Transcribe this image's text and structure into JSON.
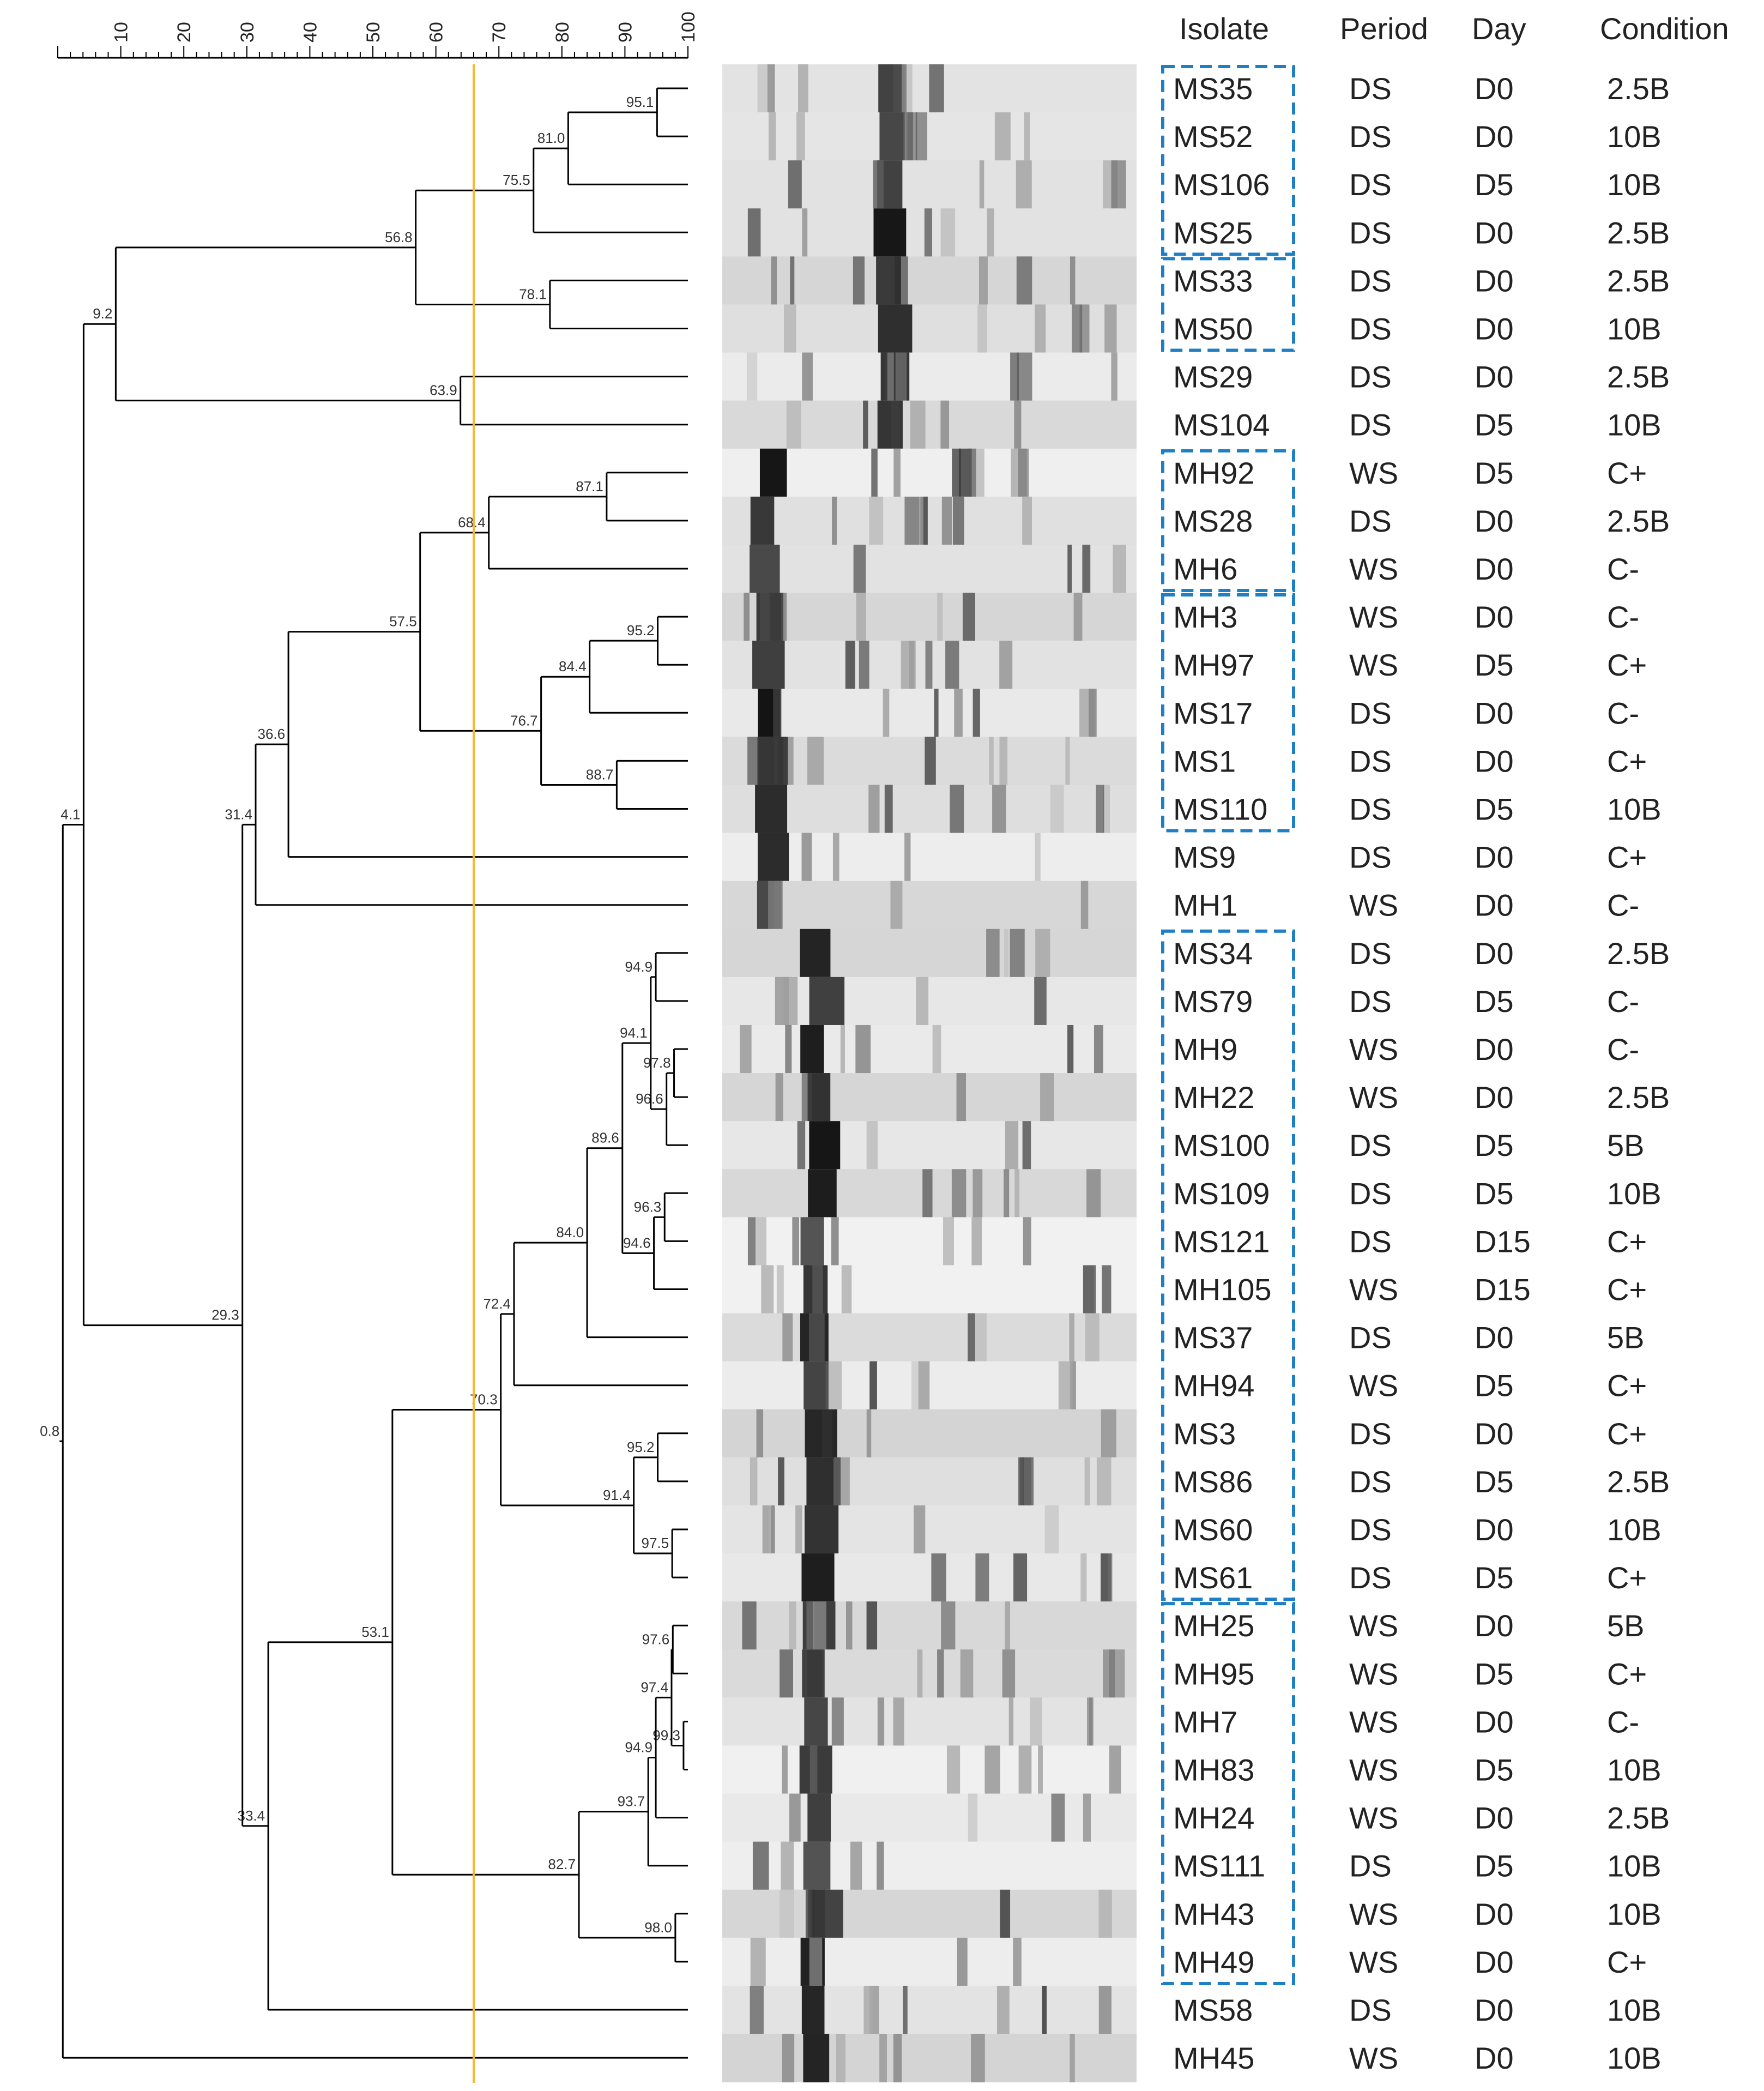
{
  "scale": {
    "ticks": [
      "10",
      "20",
      "30",
      "40",
      "50",
      "60",
      "70",
      "80",
      "90",
      "100"
    ],
    "min": 0,
    "max": 100,
    "cutoff": 66
  },
  "columns": {
    "isolate": "Isolate",
    "period": "Period",
    "day": "Day",
    "condition": "Condition"
  },
  "isolates": [
    {
      "isolate": "MS35",
      "period": "DS",
      "day": "D0",
      "condition": "2.5B"
    },
    {
      "isolate": "MS52",
      "period": "DS",
      "day": "D0",
      "condition": "10B"
    },
    {
      "isolate": "MS106",
      "period": "DS",
      "day": "D5",
      "condition": "10B"
    },
    {
      "isolate": "MS25",
      "period": "DS",
      "day": "D0",
      "condition": "2.5B"
    },
    {
      "isolate": "MS33",
      "period": "DS",
      "day": "D0",
      "condition": "2.5B"
    },
    {
      "isolate": "MS50",
      "period": "DS",
      "day": "D0",
      "condition": "10B"
    },
    {
      "isolate": "MS29",
      "period": "DS",
      "day": "D0",
      "condition": "2.5B"
    },
    {
      "isolate": "MS104",
      "period": "DS",
      "day": "D5",
      "condition": "10B"
    },
    {
      "isolate": "MH92",
      "period": "WS",
      "day": "D5",
      "condition": "C+"
    },
    {
      "isolate": "MS28",
      "period": "DS",
      "day": "D0",
      "condition": "2.5B"
    },
    {
      "isolate": "MH6",
      "period": "WS",
      "day": "D0",
      "condition": "C-"
    },
    {
      "isolate": "MH3",
      "period": "WS",
      "day": "D0",
      "condition": "C-"
    },
    {
      "isolate": "MH97",
      "period": "WS",
      "day": "D5",
      "condition": "C+"
    },
    {
      "isolate": "MS17",
      "period": "DS",
      "day": "D0",
      "condition": "C-"
    },
    {
      "isolate": "MS1",
      "period": "DS",
      "day": "D0",
      "condition": "C+"
    },
    {
      "isolate": "MS110",
      "period": "DS",
      "day": "D5",
      "condition": "10B"
    },
    {
      "isolate": "MS9",
      "period": "DS",
      "day": "D0",
      "condition": "C+"
    },
    {
      "isolate": "MH1",
      "period": "WS",
      "day": "D0",
      "condition": "C-"
    },
    {
      "isolate": "MS34",
      "period": "DS",
      "day": "D0",
      "condition": "2.5B"
    },
    {
      "isolate": "MS79",
      "period": "DS",
      "day": "D5",
      "condition": "C-"
    },
    {
      "isolate": "MH9",
      "period": "WS",
      "day": "D0",
      "condition": "C-"
    },
    {
      "isolate": "MH22",
      "period": "WS",
      "day": "D0",
      "condition": "2.5B"
    },
    {
      "isolate": "MS100",
      "period": "DS",
      "day": "D5",
      "condition": "5B"
    },
    {
      "isolate": "MS109",
      "period": "DS",
      "day": "D5",
      "condition": "10B"
    },
    {
      "isolate": "MS121",
      "period": "DS",
      "day": "D15",
      "condition": "C+"
    },
    {
      "isolate": "MH105",
      "period": "WS",
      "day": "D15",
      "condition": "C+"
    },
    {
      "isolate": "MS37",
      "period": "DS",
      "day": "D0",
      "condition": "5B"
    },
    {
      "isolate": "MH94",
      "period": "WS",
      "day": "D5",
      "condition": "C+"
    },
    {
      "isolate": "MS3",
      "period": "DS",
      "day": "D0",
      "condition": "C+"
    },
    {
      "isolate": "MS86",
      "period": "DS",
      "day": "D5",
      "condition": "2.5B"
    },
    {
      "isolate": "MS60",
      "period": "DS",
      "day": "D0",
      "condition": "10B"
    },
    {
      "isolate": "MS61",
      "period": "DS",
      "day": "D5",
      "condition": "C+"
    },
    {
      "isolate": "MH25",
      "period": "WS",
      "day": "D0",
      "condition": "5B"
    },
    {
      "isolate": "MH95",
      "period": "WS",
      "day": "D5",
      "condition": "C+"
    },
    {
      "isolate": "MH7",
      "period": "WS",
      "day": "D0",
      "condition": "C-"
    },
    {
      "isolate": "MH83",
      "period": "WS",
      "day": "D5",
      "condition": "10B"
    },
    {
      "isolate": "MH24",
      "period": "WS",
      "day": "D0",
      "condition": "2.5B"
    },
    {
      "isolate": "MS111",
      "period": "DS",
      "day": "D5",
      "condition": "10B"
    },
    {
      "isolate": "MH43",
      "period": "WS",
      "day": "D0",
      "condition": "10B"
    },
    {
      "isolate": "MH49",
      "period": "WS",
      "day": "D0",
      "condition": "C+"
    },
    {
      "isolate": "MS58",
      "period": "DS",
      "day": "D0",
      "condition": "10B"
    },
    {
      "isolate": "MH45",
      "period": "WS",
      "day": "D0",
      "condition": "10B"
    }
  ],
  "tree": {
    "label": "0.8",
    "value": 0.8,
    "children": [
      {
        "label": "4.1",
        "value": 4.1,
        "children": [
          {
            "label": "9.2",
            "value": 9.2,
            "children": [
              {
                "label": "56.8",
                "value": 56.8,
                "children": [
                  {
                    "label": "75.5",
                    "value": 75.5,
                    "children": [
                      {
                        "label": "81.0",
                        "value": 81.0,
                        "children": [
                          {
                            "label": "95.1",
                            "value": 95.1,
                            "children": [
                              {
                                "leaf": 0
                              },
                              {
                                "leaf": 1
                              }
                            ]
                          },
                          {
                            "leaf": 2
                          }
                        ]
                      },
                      {
                        "leaf": 3
                      }
                    ]
                  },
                  {
                    "label": "78.1",
                    "value": 78.1,
                    "children": [
                      {
                        "leaf": 4
                      },
                      {
                        "leaf": 5
                      }
                    ]
                  }
                ]
              },
              {
                "label": "63.9",
                "value": 63.9,
                "children": [
                  {
                    "leaf": 6
                  },
                  {
                    "leaf": 7
                  }
                ]
              }
            ]
          },
          {
            "label": "29.3",
            "value": 29.3,
            "children": [
              {
                "label": "31.4",
                "value": 31.4,
                "children": [
                  {
                    "label": "36.6",
                    "value": 36.6,
                    "children": [
                      {
                        "label": "57.5",
                        "value": 57.5,
                        "children": [
                          {
                            "label": "68.4",
                            "value": 68.4,
                            "children": [
                              {
                                "label": "87.1",
                                "value": 87.1,
                                "children": [
                                  {
                                    "leaf": 8
                                  },
                                  {
                                    "leaf": 9
                                  }
                                ]
                              },
                              {
                                "leaf": 10
                              }
                            ]
                          },
                          {
                            "label": "76.7",
                            "value": 76.7,
                            "children": [
                              {
                                "label": "84.4",
                                "value": 84.4,
                                "children": [
                                  {
                                    "label": "95.2",
                                    "value": 95.2,
                                    "children": [
                                      {
                                        "leaf": 11
                                      },
                                      {
                                        "leaf": 12
                                      }
                                    ]
                                  },
                                  {
                                    "leaf": 13
                                  }
                                ]
                              },
                              {
                                "label": "88.7",
                                "value": 88.7,
                                "children": [
                                  {
                                    "leaf": 14
                                  },
                                  {
                                    "leaf": 15
                                  }
                                ]
                              }
                            ]
                          }
                        ]
                      },
                      {
                        "leaf": 16
                      }
                    ]
                  },
                  {
                    "leaf": 17
                  }
                ]
              },
              {
                "label": "33.4",
                "value": 33.4,
                "children": [
                  {
                    "label": "53.1",
                    "value": 53.1,
                    "children": [
                      {
                        "label": "70.3",
                        "value": 70.3,
                        "children": [
                          {
                            "label": "72.4",
                            "value": 72.4,
                            "children": [
                              {
                                "label": "84.0",
                                "value": 84.0,
                                "children": [
                                  {
                                    "label": "89.6",
                                    "value": 89.6,
                                    "children": [
                                      {
                                        "label": "94.1",
                                        "value": 94.1,
                                        "children": [
                                          {
                                            "label": "94.9",
                                            "value": 94.9,
                                            "children": [
                                              {
                                                "leaf": 18
                                              },
                                              {
                                                "leaf": 19
                                              }
                                            ]
                                          },
                                          {
                                            "label": "96.6",
                                            "value": 96.6,
                                            "children": [
                                              {
                                                "label": "97.8",
                                                "value": 97.8,
                                                "children": [
                                                  {
                                                    "leaf": 20
                                                  },
                                                  {
                                                    "leaf": 21
                                                  }
                                                ]
                                              },
                                              {
                                                "leaf": 22
                                              }
                                            ]
                                          }
                                        ]
                                      },
                                      {
                                        "label": "94.6",
                                        "value": 94.6,
                                        "children": [
                                          {
                                            "label": "96.3",
                                            "value": 96.3,
                                            "children": [
                                              {
                                                "leaf": 23
                                              },
                                              {
                                                "leaf": 24
                                              }
                                            ]
                                          },
                                          {
                                            "leaf": 25
                                          }
                                        ]
                                      }
                                    ]
                                  },
                                  {
                                    "leaf": 26
                                  }
                                ]
                              },
                              {
                                "leaf": 27
                              }
                            ]
                          },
                          {
                            "label": "91.4",
                            "value": 91.4,
                            "children": [
                              {
                                "label": "95.2",
                                "value": 95.2,
                                "children": [
                                  {
                                    "leaf": 28
                                  },
                                  {
                                    "leaf": 29
                                  }
                                ]
                              },
                              {
                                "label": "97.5",
                                "value": 97.5,
                                "children": [
                                  {
                                    "leaf": 30
                                  },
                                  {
                                    "leaf": 31
                                  }
                                ]
                              }
                            ]
                          }
                        ]
                      },
                      {
                        "label": "82.7",
                        "value": 82.7,
                        "children": [
                          {
                            "label": "93.7",
                            "value": 93.7,
                            "children": [
                              {
                                "label": "94.9",
                                "value": 94.9,
                                "children": [
                                  {
                                    "label": "97.4",
                                    "value": 97.4,
                                    "children": [
                                      {
                                        "label": "97.6",
                                        "value": 97.6,
                                        "children": [
                                          {
                                            "leaf": 32
                                          },
                                          {
                                            "leaf": 33
                                          }
                                        ]
                                      },
                                      {
                                        "label": "99.3",
                                        "value": 99.3,
                                        "children": [
                                          {
                                            "leaf": 34
                                          },
                                          {
                                            "leaf": 35
                                          }
                                        ]
                                      }
                                    ]
                                  },
                                  {
                                    "leaf": 36
                                  }
                                ]
                              },
                              {
                                "leaf": 37
                              }
                            ]
                          },
                          {
                            "label": "98.0",
                            "value": 98.0,
                            "children": [
                              {
                                "leaf": 38
                              },
                              {
                                "leaf": 39
                              }
                            ]
                          }
                        ]
                      }
                    ]
                  },
                  {
                    "leaf": 40
                  }
                ]
              }
            ]
          }
        ]
      },
      {
        "leaf": 41
      }
    ]
  },
  "groups": [
    {
      "first": 0,
      "last": 3
    },
    {
      "first": 4,
      "last": 5
    },
    {
      "first": 8,
      "last": 10
    },
    {
      "first": 11,
      "last": 15
    },
    {
      "first": 18,
      "last": 31
    },
    {
      "first": 32,
      "last": 39
    }
  ],
  "colors": {
    "tree_line": "#000000",
    "cutoff_line": "#f5b82e",
    "group_box": "#1f7fc4",
    "gel_background": "#e6e6e6",
    "band": "#111111"
  }
}
